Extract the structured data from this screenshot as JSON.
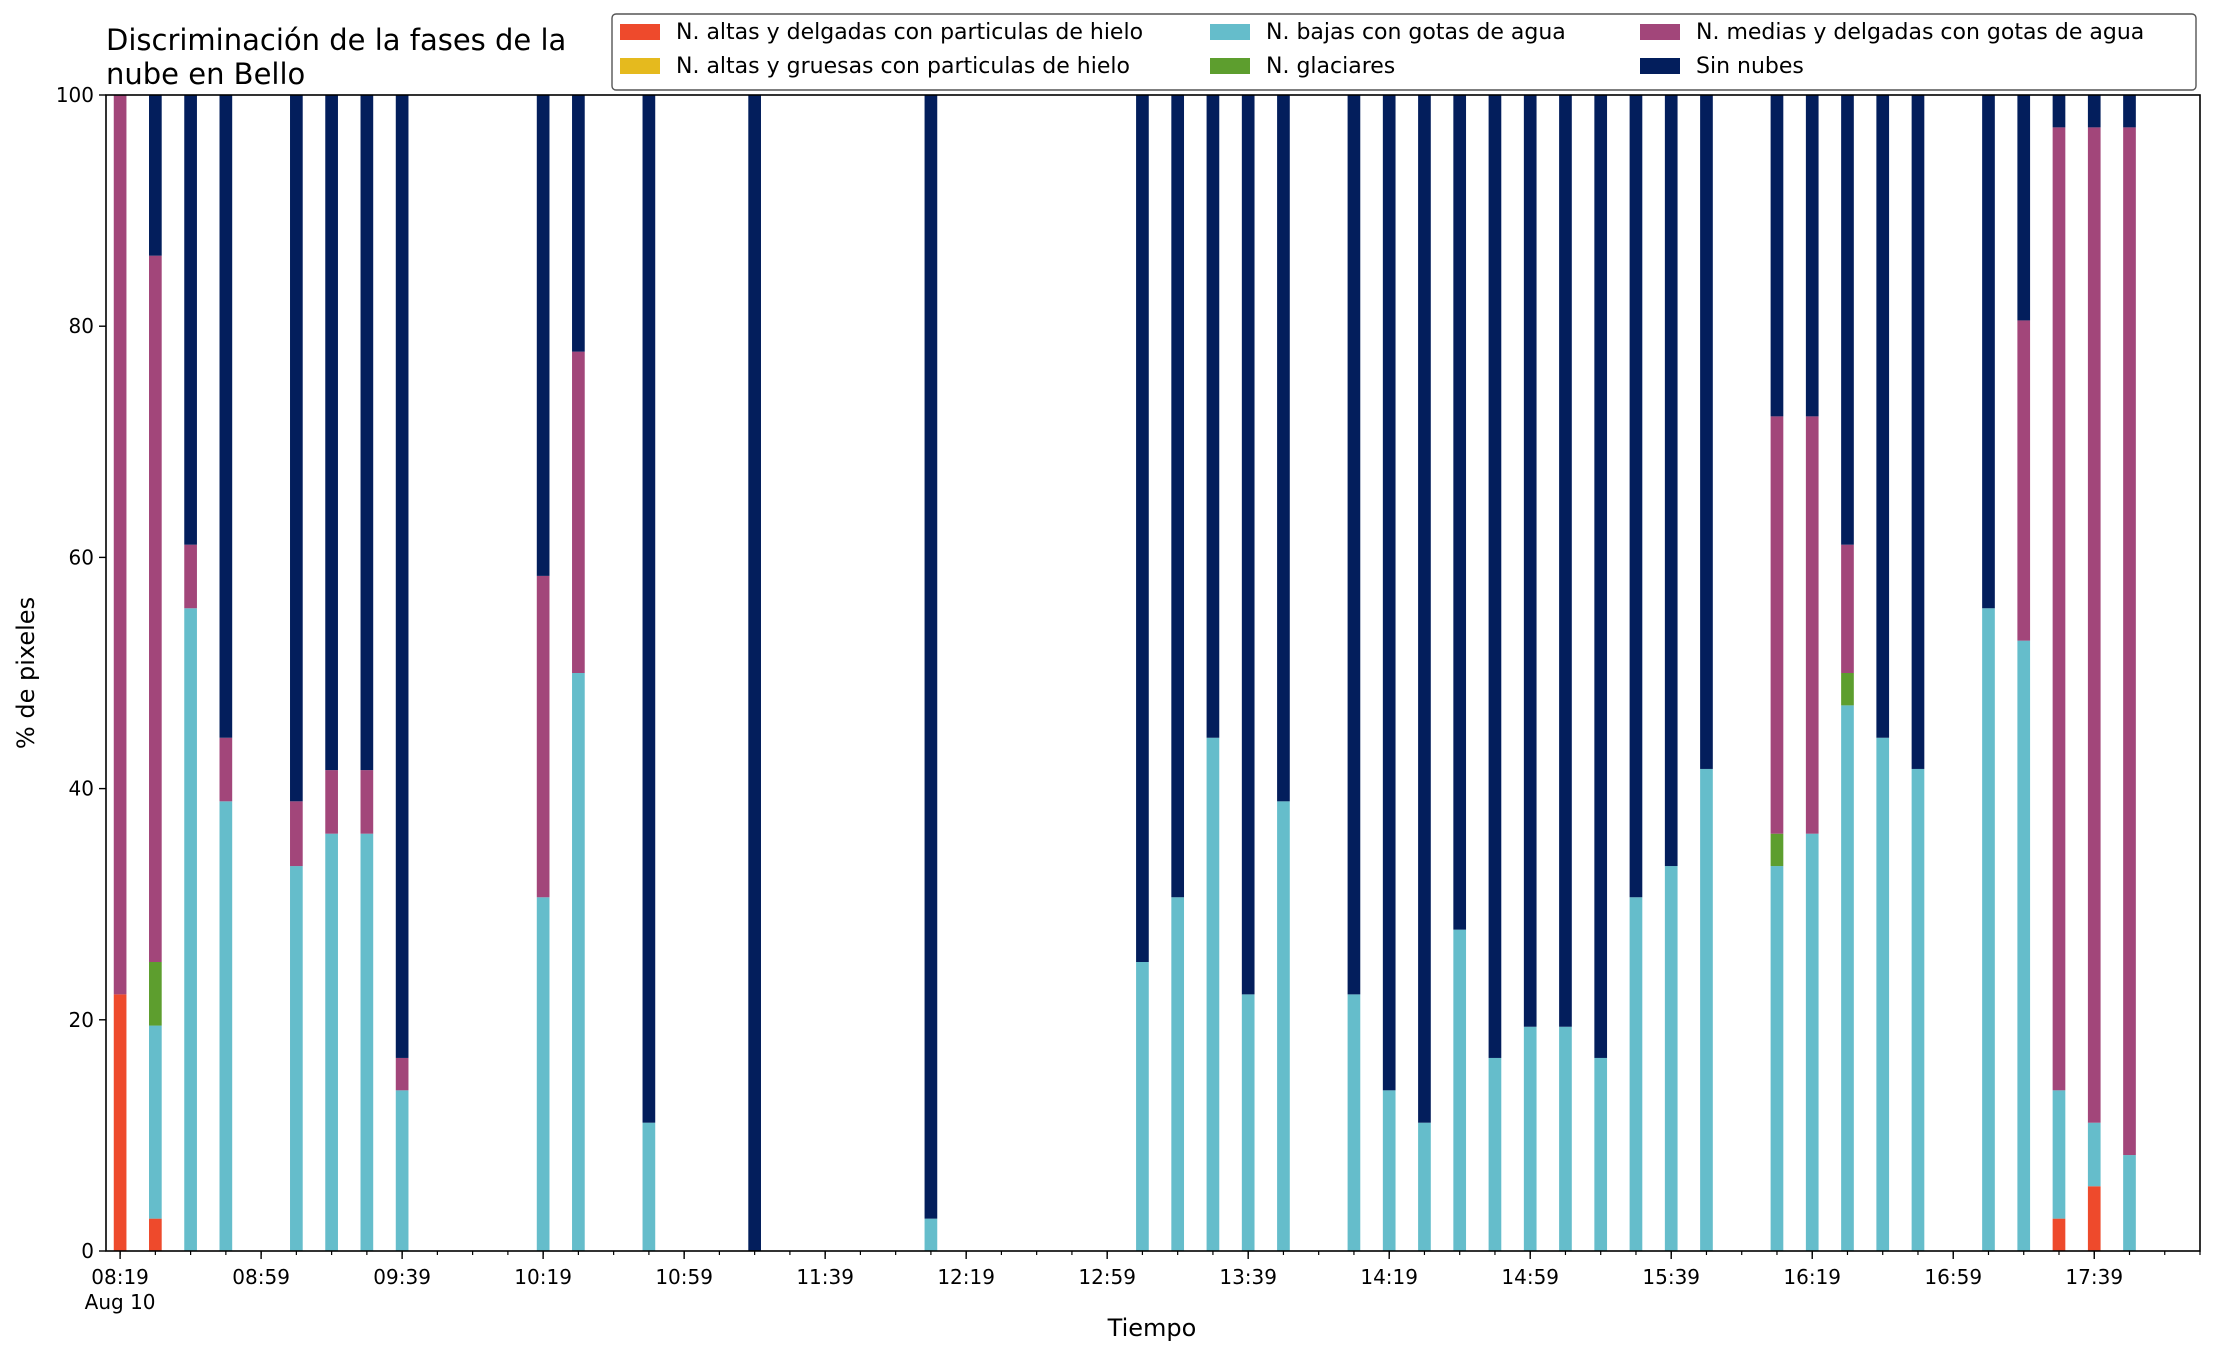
{
  "chart_data": {
    "type": "bar",
    "stacked": true,
    "title_lines": [
      "Discriminación de la fases de la",
      "nube en Bello"
    ],
    "xlabel": "Tiempo",
    "ylabel": "% de pixeles",
    "ylim": [
      0,
      100
    ],
    "yticks": [
      0,
      20,
      40,
      60,
      80,
      100
    ],
    "xlim": [
      "08:15",
      "18:09"
    ],
    "x_major_ticks": [
      "08:19",
      "08:59",
      "09:39",
      "10:19",
      "10:59",
      "11:39",
      "12:19",
      "12:59",
      "13:39",
      "14:19",
      "14:59",
      "15:39",
      "16:19",
      "16:59",
      "17:39"
    ],
    "x_first_tick_sublabel": "Aug 10",
    "x_minor_tick_interval_minutes": 10,
    "bar_width_minutes": 5,
    "grid": false,
    "legend_placement": "top-right",
    "legend_columns": 3,
    "times": [
      "08:19",
      "08:29",
      "08:39",
      "08:49",
      "09:09",
      "09:19",
      "09:29",
      "09:39",
      "10:19",
      "10:29",
      "10:49",
      "11:19",
      "12:09",
      "13:09",
      "13:19",
      "13:29",
      "13:39",
      "13:49",
      "14:09",
      "14:19",
      "14:29",
      "14:39",
      "14:49",
      "14:59",
      "15:09",
      "15:19",
      "15:29",
      "15:39",
      "15:49",
      "16:09",
      "16:19",
      "16:29",
      "16:39",
      "16:49",
      "17:09",
      "17:19",
      "17:29",
      "17:39",
      "17:49"
    ],
    "series": [
      {
        "name": "N. altas y delgadas con particulas de hielo",
        "color": "#ee4a2c",
        "values": [
          22.2,
          2.8,
          0,
          0,
          0,
          0,
          0,
          0,
          0,
          0,
          0,
          0,
          0,
          0,
          0,
          0,
          0,
          0,
          0,
          0,
          0,
          0,
          0,
          0,
          0,
          0,
          0,
          0,
          0,
          0,
          0,
          0,
          0,
          0,
          0,
          0,
          2.8,
          5.6,
          0
        ]
      },
      {
        "name": "N. bajas con gotas de agua",
        "color": "#65bdcb",
        "values": [
          0,
          16.7,
          55.6,
          38.9,
          33.3,
          36.1,
          36.1,
          13.9,
          30.6,
          50,
          11.1,
          0,
          2.8,
          25,
          30.6,
          44.4,
          22.2,
          38.9,
          22.2,
          13.9,
          11.1,
          27.8,
          16.7,
          19.4,
          19.4,
          16.7,
          30.6,
          33.3,
          41.7,
          33.3,
          36.1,
          47.2,
          44.4,
          41.7,
          55.6,
          52.8,
          11.1,
          5.5,
          8.3
        ]
      },
      {
        "name": "N. glaciares",
        "color": "#5d9e2e",
        "values": [
          0,
          5.5,
          0,
          0,
          0,
          0,
          0,
          0,
          0,
          0,
          0,
          0,
          0,
          0,
          0,
          0,
          0,
          0,
          0,
          0,
          0,
          0,
          0,
          0,
          0,
          0,
          0,
          0,
          0,
          2.8,
          0,
          2.8,
          0,
          0,
          0,
          0,
          0,
          0,
          0
        ]
      },
      {
        "name": "N. medias y delgadas con gotas de agua",
        "color": "#a2467a",
        "values": [
          77.8,
          61.1,
          5.5,
          5.5,
          5.6,
          5.5,
          5.5,
          2.8,
          27.8,
          27.8,
          0,
          0,
          0,
          0,
          0,
          0,
          0,
          0,
          0,
          0,
          0,
          0,
          0,
          0,
          0,
          0,
          0,
          0,
          0,
          36.1,
          36.1,
          11.1,
          0,
          0,
          0,
          27.7,
          83.3,
          86.1,
          88.9
        ]
      },
      {
        "name": "Sin nubes",
        "color": "#031e5c",
        "values": [
          0,
          13.9,
          38.9,
          55.6,
          61.1,
          58.4,
          58.4,
          83.3,
          41.6,
          22.2,
          88.9,
          100,
          97.2,
          75,
          69.4,
          55.6,
          77.8,
          61.1,
          77.8,
          86.1,
          88.9,
          72.2,
          83.3,
          80.6,
          80.6,
          83.3,
          69.4,
          66.7,
          58.3,
          27.8,
          27.9,
          38.9,
          55.6,
          58.3,
          44.4,
          19.5,
          2.8,
          2.8,
          2.8
        ]
      }
    ],
    "legend": [
      {
        "label": "N. altas y delgadas con particulas de hielo",
        "color": "#ee4a2c"
      },
      {
        "label": "N. altas y gruesas con particulas de hielo",
        "color": "#e5ba1e"
      },
      {
        "label": "N. bajas con gotas de agua",
        "color": "#65bdcb"
      },
      {
        "label": "N. glaciares",
        "color": "#5d9e2e"
      },
      {
        "label": "N. medias y delgadas con gotas de agua",
        "color": "#a2467a"
      },
      {
        "label": "Sin nubes",
        "color": "#031e5c"
      }
    ]
  }
}
